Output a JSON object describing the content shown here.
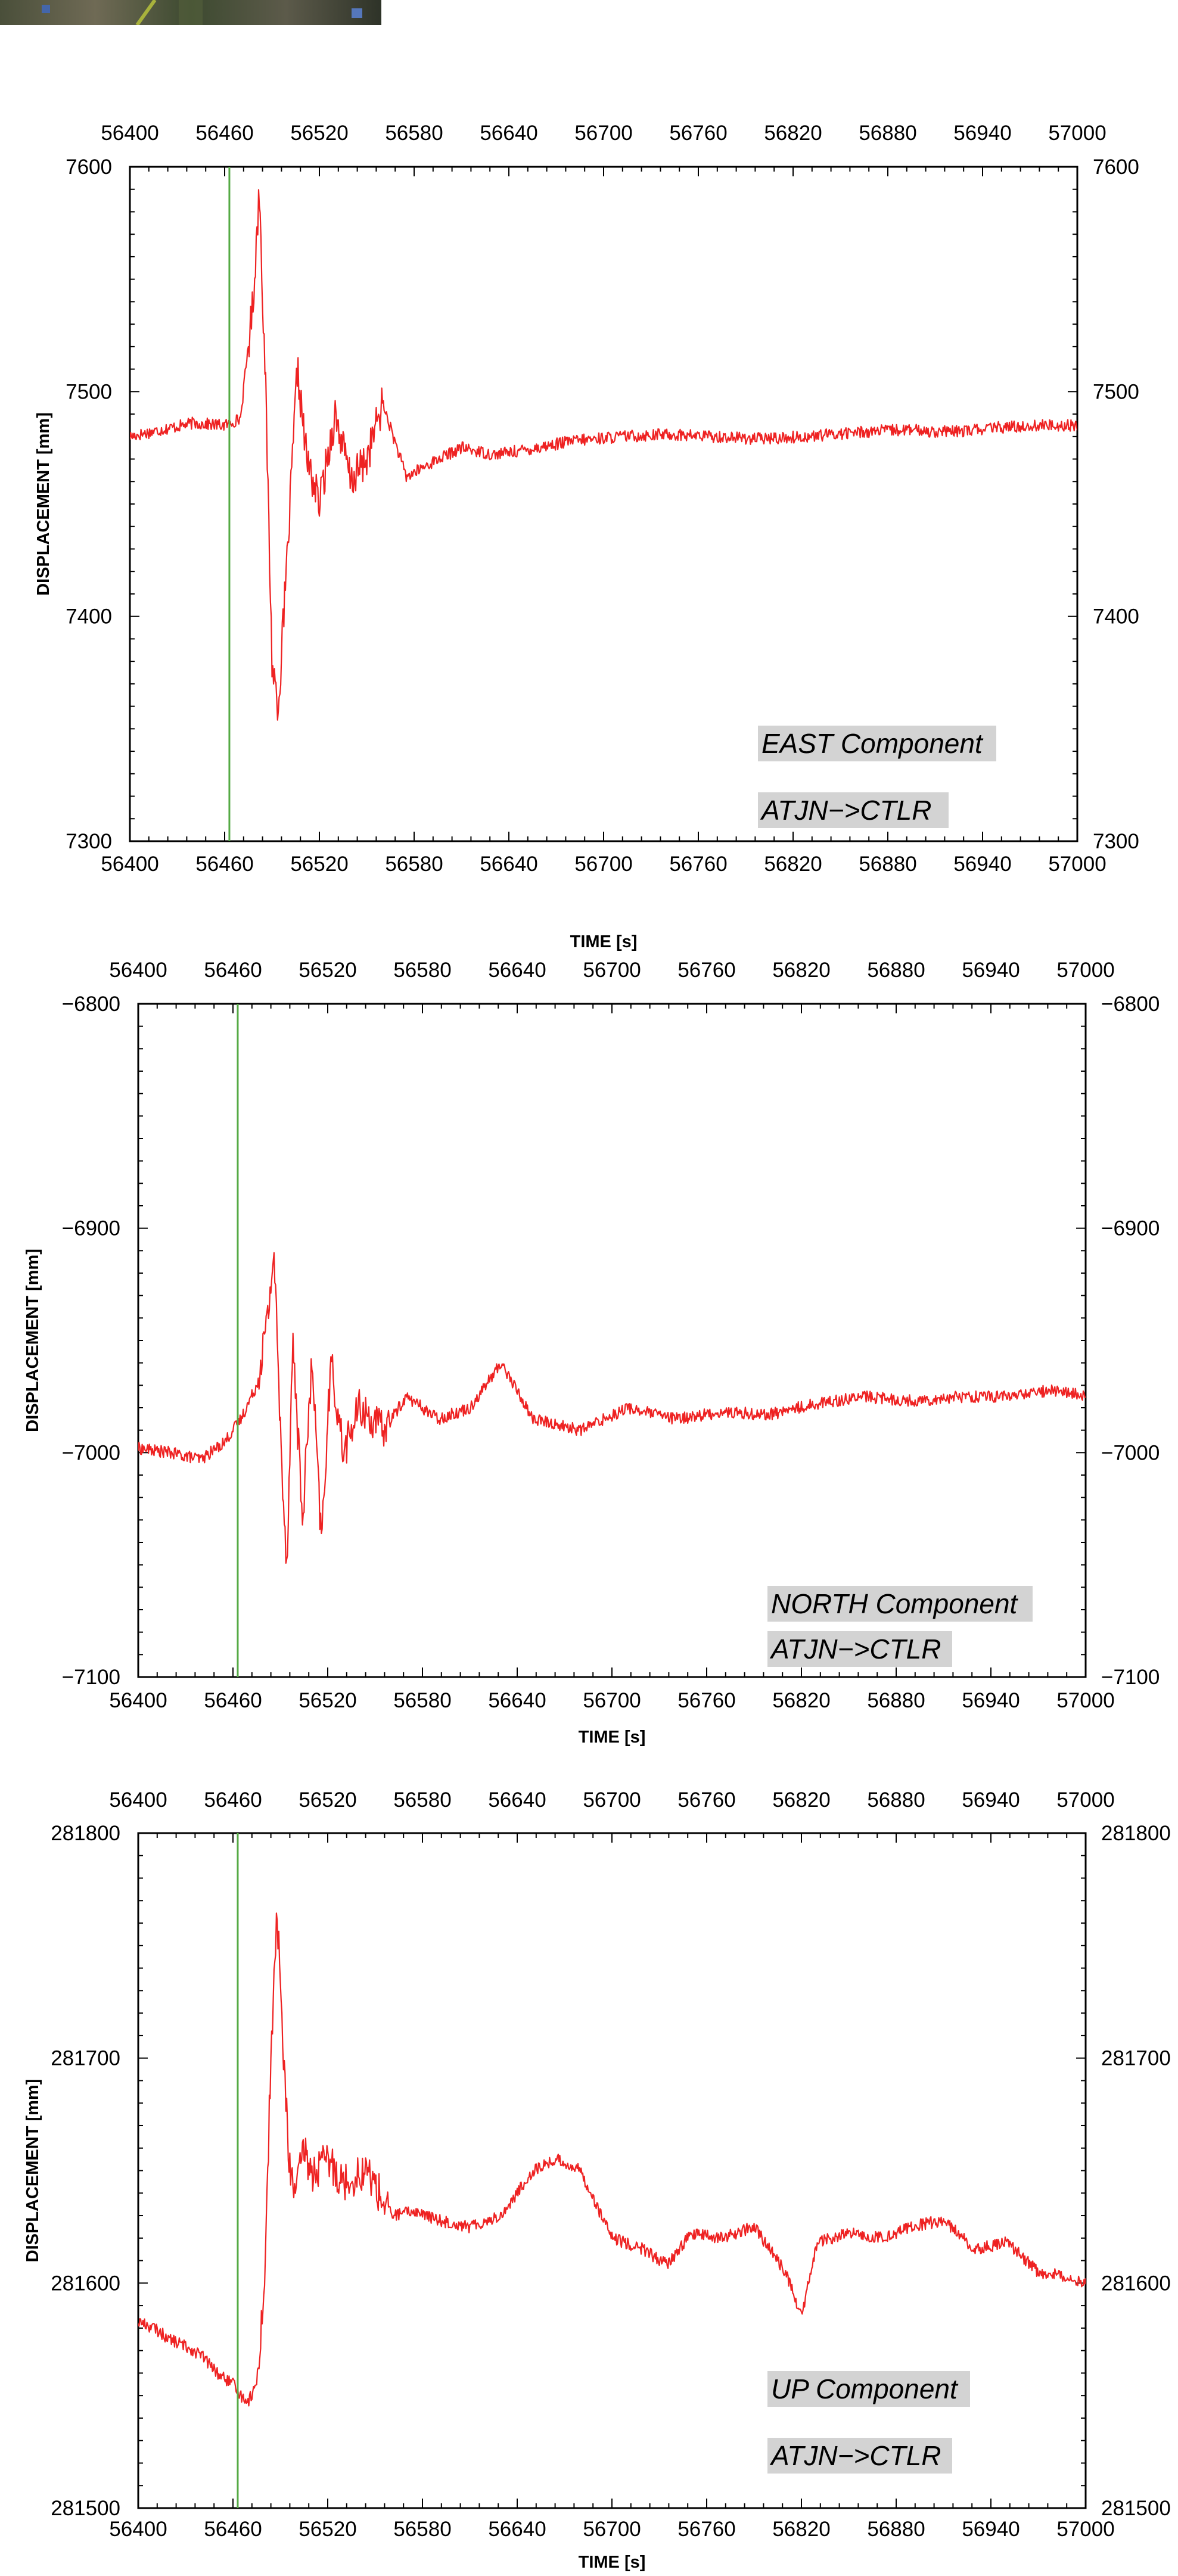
{
  "colors": {
    "trace": "#ee2222",
    "marker": "#55aa44",
    "annotation_bg": "#d3d3d3",
    "axis": "#000000"
  },
  "chart_data": [
    {
      "type": "line",
      "ylabel": "DISPLACEMENT [mm]",
      "xlabel": "TIME [s]",
      "xlim": [
        56400,
        57000
      ],
      "ylim": [
        7300,
        7600
      ],
      "xticks": [
        56400,
        56460,
        56520,
        56580,
        56640,
        56700,
        56760,
        56820,
        56880,
        56940,
        57000
      ],
      "yticks": [
        7300,
        7400,
        7500,
        7600
      ],
      "grid": false,
      "marker_line_x": 56463,
      "annotations": [
        "EAST Component",
        "ATJN−>CTLR"
      ],
      "series": [
        {
          "x": [
            56400,
            56420,
            56440,
            56460,
            56470,
            56478,
            56482,
            56486,
            56490,
            56494,
            56500,
            56506,
            56512,
            56520,
            56530,
            56540,
            56550,
            56560,
            56575,
            56590,
            56610,
            56630,
            56650,
            56680,
            56710,
            56740,
            56770,
            56800,
            56830,
            56860,
            56890,
            56920,
            56950,
            56980,
            57000
          ],
          "y": [
            7480,
            7483,
            7486,
            7485,
            7488,
            7540,
            7590,
            7500,
            7380,
            7360,
            7430,
            7510,
            7470,
            7450,
            7490,
            7460,
            7470,
            7495,
            7462,
            7468,
            7475,
            7472,
            7474,
            7478,
            7480,
            7481,
            7480,
            7479,
            7480,
            7482,
            7483,
            7482,
            7484,
            7485,
            7485
          ]
        }
      ]
    },
    {
      "type": "line",
      "ylabel": "DISPLACEMENT [mm]",
      "xlabel": "TIME [s]",
      "xlim": [
        56400,
        57000
      ],
      "ylim": [
        -7100,
        -6800
      ],
      "xticks": [
        56400,
        56460,
        56520,
        56580,
        56640,
        56700,
        56760,
        56820,
        56880,
        56940,
        57000
      ],
      "yticks": [
        -7100,
        -7000,
        -6900,
        -6800
      ],
      "grid": false,
      "marker_line_x": 56463,
      "annotations": [
        "NORTH Component",
        "ATJN−>CTLR"
      ],
      "series": [
        {
          "x": [
            56400,
            56420,
            56440,
            56455,
            56465,
            56475,
            56482,
            56486,
            56490,
            56494,
            56498,
            56504,
            56510,
            56516,
            56522,
            56530,
            56540,
            56555,
            56570,
            56590,
            56610,
            56630,
            56650,
            56680,
            56710,
            56740,
            56770,
            56800,
            56830,
            56860,
            56890,
            56920,
            56950,
            56980,
            57000
          ],
          "y": [
            -6998,
            -7000,
            -7003,
            -6995,
            -6985,
            -6970,
            -6940,
            -6910,
            -6990,
            -7050,
            -6950,
            -7030,
            -6960,
            -7040,
            -6960,
            -7000,
            -6980,
            -6990,
            -6975,
            -6985,
            -6980,
            -6960,
            -6985,
            -6990,
            -6980,
            -6985,
            -6982,
            -6983,
            -6978,
            -6975,
            -6977,
            -6975,
            -6975,
            -6972,
            -6975
          ]
        }
      ]
    },
    {
      "type": "line",
      "ylabel": "DISPLACEMENT [mm]",
      "xlabel": "TIME [s]",
      "xlim": [
        56400,
        57000
      ],
      "ylim": [
        281500,
        281800
      ],
      "xticks": [
        56400,
        56460,
        56520,
        56580,
        56640,
        56700,
        56760,
        56820,
        56880,
        56940,
        57000
      ],
      "yticks": [
        281500,
        281600,
        281700,
        281800
      ],
      "grid": false,
      "marker_line_x": 56463,
      "annotations": [
        "UP Component",
        "ATJN−>CTLR"
      ],
      "series": [
        {
          "x": [
            56400,
            56410,
            56420,
            56430,
            56440,
            56450,
            56460,
            56465,
            56470,
            56475,
            56480,
            56484,
            56488,
            56492,
            56496,
            56500,
            56505,
            56510,
            56520,
            56530,
            56545,
            56560,
            56575,
            56590,
            56610,
            56630,
            56650,
            56665,
            56680,
            56700,
            56720,
            56735,
            56750,
            56770,
            56790,
            56810,
            56820,
            56830,
            56850,
            56870,
            56890,
            56910,
            56930,
            56950,
            56970,
            56990,
            57000
          ],
          "y": [
            281583,
            281580,
            281575,
            281572,
            281568,
            281560,
            281555,
            281550,
            281548,
            281555,
            281600,
            281700,
            281765,
            281700,
            281650,
            281640,
            281660,
            281648,
            281655,
            281645,
            281650,
            281630,
            281632,
            281628,
            281625,
            281630,
            281650,
            281655,
            281650,
            281620,
            281615,
            281608,
            281622,
            281620,
            281625,
            281605,
            281585,
            281618,
            281622,
            281620,
            281625,
            281628,
            281615,
            281618,
            281605,
            281603,
            281600
          ]
        }
      ]
    }
  ]
}
